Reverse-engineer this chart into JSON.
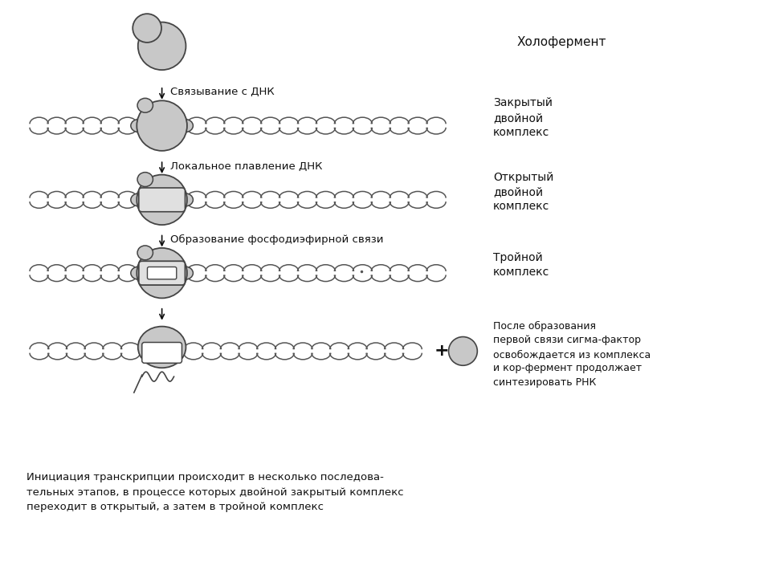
{
  "bg_color": "#ffffff",
  "fig_width": 9.6,
  "fig_height": 7.2,
  "label_holoferm": "Холофермент",
  "label_closed": "Закрытый\nдвойной\nкомплекс",
  "label_open": "Открытый\nдвойной\nкомплекс",
  "label_triple": "Тройной\nкомплекс",
  "label_after": "После образования\nпервой связи сигма-фактор\nосвобождается из комплекса\nи кор-фермент продолжает\nсинтезировать РНК",
  "arrow1": "Связывание с ДНК",
  "arrow2": "Локальное плавление ДНК",
  "arrow3": "Образование фосфодиэфирной связи",
  "footer": "Инициация транскрипции происходит в несколько последова-\nтельных этапов, в процессе которых двойной закрытый комплекс\nпереходит в открытый, а затем в тройной комплекс",
  "enzyme_color": "#c8c8c8",
  "enzyme_edge": "#444444",
  "text_color": "#111111",
  "arrow_color": "#111111",
  "dna_edge": "#555555",
  "bubble_fill": "#e0e0e0",
  "bubble_edge": "#444444"
}
